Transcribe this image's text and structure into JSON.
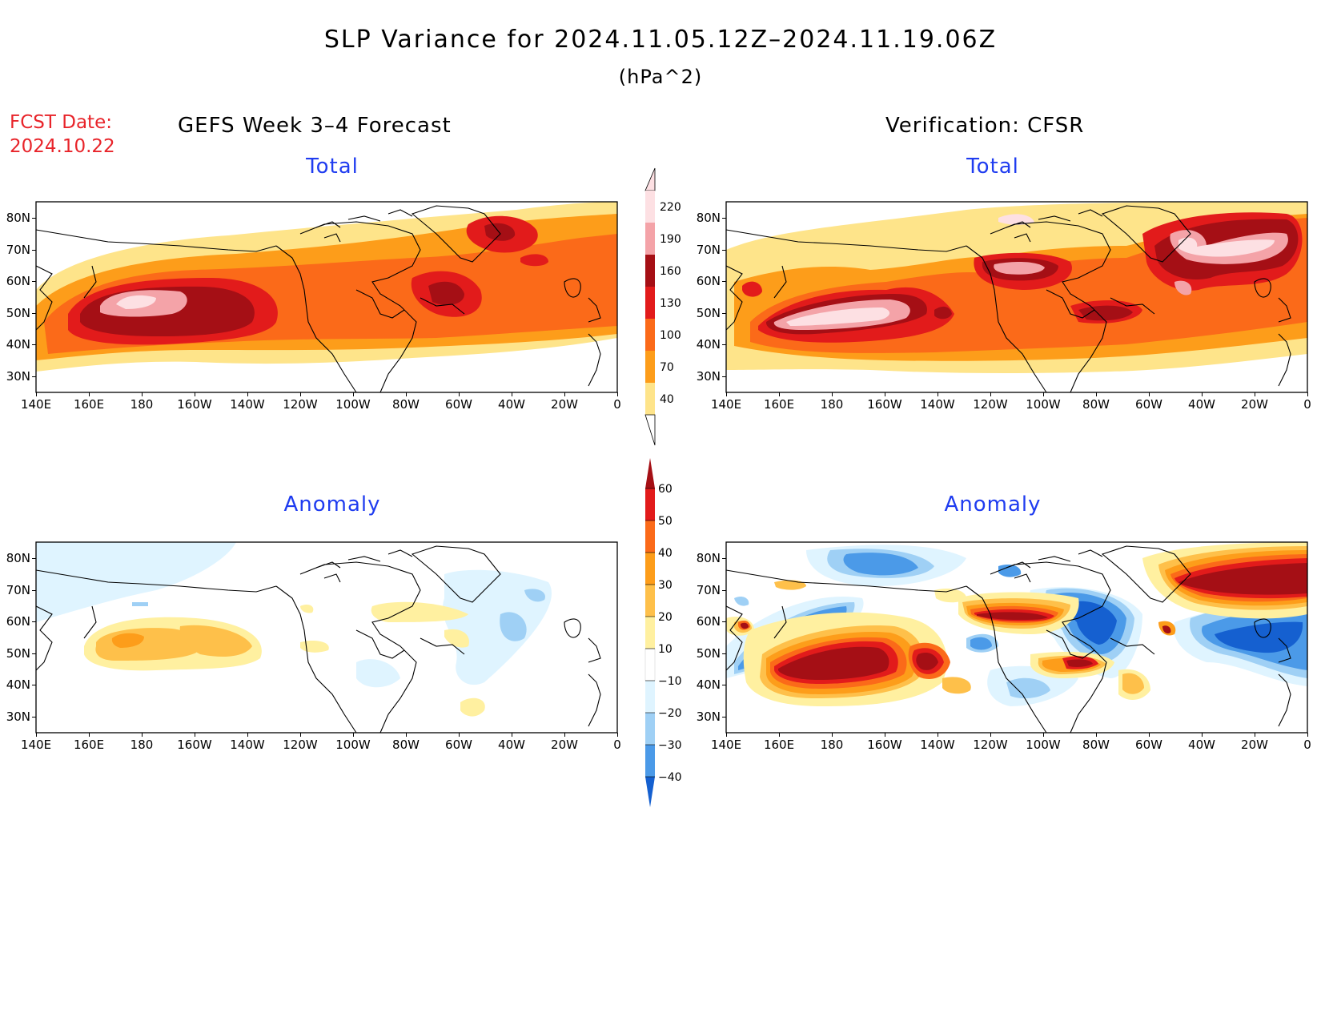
{
  "title": "SLP Variance for 2024.11.05.12Z–2024.11.19.06Z",
  "units": "(hPa^2)",
  "fcst_label": "FCST Date:",
  "fcst_date": "2024.10.22",
  "left_header": "GEFS Week 3–4 Forecast",
  "right_header": "Verification: CFSR",
  "panels": [
    {
      "id": "gefs-total",
      "subtitle": "Total",
      "scale": "total"
    },
    {
      "id": "cfsr-total",
      "subtitle": "Total",
      "scale": "total"
    },
    {
      "id": "gefs-anomaly",
      "subtitle": "Anomaly",
      "scale": "anomaly"
    },
    {
      "id": "cfsr-anomaly",
      "subtitle": "Anomaly",
      "scale": "anomaly"
    }
  ],
  "lat_labels": [
    "80N",
    "70N",
    "60N",
    "50N",
    "40N",
    "30N"
  ],
  "lon_labels": [
    "140E",
    "160E",
    "180",
    "160W",
    "140W",
    "120W",
    "100W",
    "80W",
    "60W",
    "40W",
    "20W",
    "0"
  ],
  "colorbar_total": {
    "labels": [
      "220",
      "190",
      "160",
      "130",
      "100",
      "70",
      "40"
    ],
    "colors": [
      "#fde0e3",
      "#f4a3a8",
      "#a50f15",
      "#e21b1b",
      "#fb6a19",
      "#fd9d1a",
      "#fee48a"
    ]
  },
  "colorbar_anomaly": {
    "labels": [
      "60",
      "50",
      "40",
      "30",
      "20",
      "10",
      "−10",
      "−20",
      "−30",
      "−40"
    ],
    "colors": [
      "#a50f15",
      "#e21b1b",
      "#fb6a19",
      "#fd9d1a",
      "#fec04a",
      "#fff0a0",
      "#ffffff",
      "#dff4ff",
      "#9fd0f5",
      "#4b9ae8",
      "#1560d0"
    ]
  },
  "field_colors": {
    "t1": "#fee48a",
    "t2": "#fd9d1a",
    "t3": "#fb6a19",
    "t4": "#e21b1b",
    "t5": "#a50f15",
    "t6": "#f4a3a8",
    "t7": "#fde0e3",
    "p1": "#fff0a0",
    "p2": "#fec04a",
    "p3": "#fd9d1a",
    "p4": "#fb6a19",
    "p5": "#e21b1b",
    "p6": "#a50f15",
    "n1": "#dff4ff",
    "n2": "#9fd0f5",
    "n3": "#4b9ae8",
    "n4": "#1560d0"
  }
}
